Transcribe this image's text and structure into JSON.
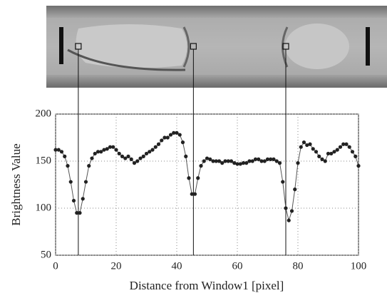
{
  "chart_data": {
    "type": "line",
    "xlabel": "Distance from Window1 [pixel]",
    "ylabel": "Brightness Value",
    "xlim": [
      0,
      100
    ],
    "ylim": [
      50,
      200
    ],
    "xticks": [
      0,
      20,
      40,
      60,
      80,
      100
    ],
    "yticks": [
      50,
      100,
      150,
      200
    ],
    "grid": true,
    "color": "#222222",
    "vlines": [
      7.5,
      45.5,
      76
    ],
    "x": [
      0,
      1,
      2,
      3,
      4,
      5,
      6,
      7,
      8,
      9,
      10,
      11,
      12,
      13,
      14,
      15,
      16,
      17,
      18,
      19,
      20,
      21,
      22,
      23,
      24,
      25,
      26,
      27,
      28,
      29,
      30,
      31,
      32,
      33,
      34,
      35,
      36,
      37,
      38,
      39,
      40,
      41,
      42,
      43,
      44,
      45,
      46,
      47,
      48,
      49,
      50,
      51,
      52,
      53,
      54,
      55,
      56,
      57,
      58,
      59,
      60,
      61,
      62,
      63,
      64,
      65,
      66,
      67,
      68,
      69,
      70,
      71,
      72,
      73,
      74,
      75,
      76,
      77,
      78,
      79,
      80,
      81,
      82,
      83,
      84,
      85,
      86,
      87,
      88,
      89,
      90,
      91,
      92,
      93,
      94,
      95,
      96,
      97,
      98,
      99,
      100
    ],
    "values": [
      162,
      162,
      160,
      155,
      145,
      128,
      108,
      95,
      95,
      110,
      128,
      145,
      153,
      158,
      160,
      160,
      162,
      163,
      165,
      165,
      162,
      158,
      155,
      153,
      155,
      152,
      148,
      150,
      153,
      155,
      158,
      160,
      162,
      165,
      168,
      172,
      175,
      175,
      178,
      180,
      180,
      178,
      170,
      155,
      132,
      115,
      115,
      132,
      145,
      150,
      153,
      152,
      150,
      150,
      150,
      148,
      150,
      150,
      150,
      148,
      147,
      147,
      148,
      148,
      150,
      150,
      152,
      152,
      150,
      150,
      152,
      152,
      152,
      150,
      148,
      128,
      100,
      87,
      97,
      120,
      148,
      165,
      170,
      167,
      168,
      163,
      160,
      155,
      152,
      150,
      158,
      158,
      160,
      162,
      165,
      168,
      168,
      165,
      160,
      155,
      145
    ]
  }
}
